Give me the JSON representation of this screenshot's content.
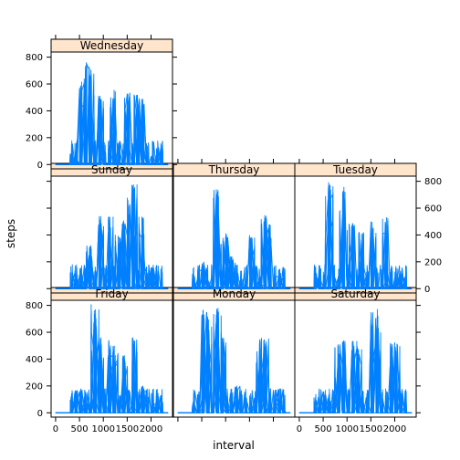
{
  "chart_data": {
    "type": "line",
    "xlabel": "interval",
    "ylabel": "steps",
    "xlim": [
      0,
      2355
    ],
    "ylim": [
      0,
      806
    ],
    "x_ticks": [
      0,
      500,
      1000,
      1500,
      2000
    ],
    "y_ticks": [
      0,
      200,
      400,
      600,
      800
    ],
    "grid": false,
    "colors": {
      "line": "#0080ff",
      "strip": "#ffe5cc",
      "frame": "#000000"
    },
    "panels": [
      {
        "label": "Friday",
        "peaks": [
          [
            400,
            160
          ],
          [
            800,
            806
          ],
          [
            850,
            780
          ],
          [
            950,
            560
          ],
          [
            1150,
            540
          ],
          [
            1250,
            500
          ],
          [
            1450,
            430
          ],
          [
            1650,
            560
          ],
          [
            1850,
            200
          ],
          [
            2100,
            90
          ]
        ]
      },
      {
        "label": "Monday",
        "peaks": [
          [
            300,
            60
          ],
          [
            550,
            780
          ],
          [
            650,
            720
          ],
          [
            800,
            780
          ],
          [
            850,
            770
          ],
          [
            950,
            560
          ],
          [
            1250,
            200
          ],
          [
            1700,
            560
          ],
          [
            1850,
            560
          ],
          [
            2100,
            80
          ]
        ]
      },
      {
        "label": "Saturday",
        "peaks": [
          [
            500,
            120
          ],
          [
            800,
            520
          ],
          [
            900,
            540
          ],
          [
            1150,
            540
          ],
          [
            1250,
            500
          ],
          [
            1550,
            780
          ],
          [
            1650,
            800
          ],
          [
            1950,
            520
          ],
          [
            2050,
            530
          ],
          [
            2200,
            60
          ]
        ]
      },
      {
        "label": "Sunday",
        "peaks": [
          [
            400,
            80
          ],
          [
            700,
            320
          ],
          [
            950,
            540
          ],
          [
            1150,
            540
          ],
          [
            1300,
            400
          ],
          [
            1450,
            540
          ],
          [
            1550,
            680
          ],
          [
            1650,
            780
          ],
          [
            1800,
            540
          ],
          [
            2000,
            160
          ]
        ]
      },
      {
        "label": "Thursday",
        "peaks": [
          [
            300,
            80
          ],
          [
            550,
            200
          ],
          [
            800,
            760
          ],
          [
            850,
            540
          ],
          [
            1000,
            420
          ],
          [
            1150,
            240
          ],
          [
            1550,
            400
          ],
          [
            1800,
            560
          ],
          [
            1900,
            480
          ],
          [
            2100,
            100
          ]
        ]
      },
      {
        "label": "Tuesday",
        "peaks": [
          [
            400,
            120
          ],
          [
            600,
            800
          ],
          [
            650,
            780
          ],
          [
            900,
            760
          ],
          [
            950,
            560
          ],
          [
            1100,
            500
          ],
          [
            1300,
            420
          ],
          [
            1550,
            500
          ],
          [
            1800,
            540
          ],
          [
            2100,
            120
          ]
        ]
      },
      {
        "label": "Wednesday",
        "peaks": [
          [
            300,
            80
          ],
          [
            550,
            620
          ],
          [
            650,
            760
          ],
          [
            750,
            740
          ],
          [
            950,
            520
          ],
          [
            1200,
            560
          ],
          [
            1500,
            540
          ],
          [
            1700,
            520
          ],
          [
            1800,
            520
          ],
          [
            2200,
            120
          ]
        ]
      }
    ]
  }
}
